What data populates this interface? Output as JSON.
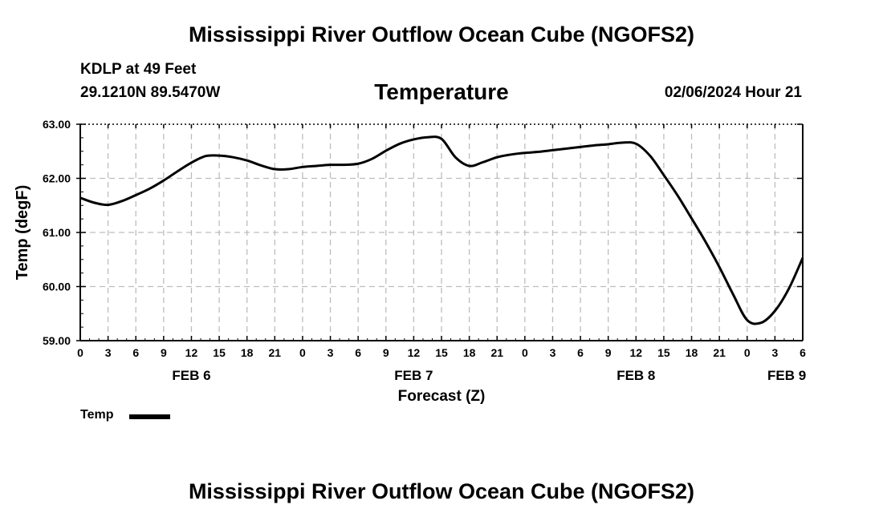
{
  "header": {
    "title": "Mississippi River Outflow Ocean Cube (NGOFS2)",
    "station": "KDLP at 49 Feet",
    "coordinates": "29.1210N  89.5470W",
    "variable": "Temperature",
    "datetime": "02/06/2024 Hour 21"
  },
  "footer": {
    "title": "Mississippi River Outflow Ocean Cube (NGOFS2)"
  },
  "legend": {
    "label": "Temp"
  },
  "chart_data": {
    "type": "line",
    "title": "Temperature",
    "xlabel": "Forecast (Z)",
    "ylabel": "Temp (degF)",
    "xlim": [
      0,
      78
    ],
    "ylim": [
      59.0,
      63.0
    ],
    "grid": true,
    "legend_position": "bottom-left",
    "x_ticks": [
      0,
      3,
      6,
      9,
      12,
      15,
      18,
      21,
      24,
      27,
      30,
      33,
      36,
      39,
      42,
      45,
      48,
      51,
      54,
      57,
      60,
      63,
      66,
      69,
      72,
      75,
      78
    ],
    "x_tick_labels": [
      "0",
      "3",
      "6",
      "9",
      "12",
      "15",
      "18",
      "21",
      "0",
      "3",
      "6",
      "9",
      "12",
      "15",
      "18",
      "21",
      "0",
      "3",
      "6",
      "9",
      "12",
      "15",
      "18",
      "21",
      "0",
      "3",
      "6"
    ],
    "y_ticks": [
      59.0,
      60.0,
      61.0,
      62.0,
      63.0
    ],
    "y_tick_labels": [
      "59.00",
      "60.00",
      "61.00",
      "62.00",
      "63.00"
    ],
    "day_labels": [
      {
        "label": "FEB 6",
        "x": 12
      },
      {
        "label": "FEB 7",
        "x": 36
      },
      {
        "label": "FEB 8",
        "x": 60
      },
      {
        "label": "FEB 9",
        "x": 75.5
      }
    ],
    "series": [
      {
        "name": "Temp",
        "color": "#000000",
        "x": [
          0,
          1.5,
          3,
          4.5,
          6,
          7.5,
          9,
          10.5,
          12,
          13.5,
          15,
          16.5,
          18,
          19.5,
          21,
          22.5,
          24,
          25.5,
          27,
          28.5,
          30,
          31.5,
          33,
          34.5,
          36,
          37.5,
          39,
          40.5,
          42,
          43.5,
          45,
          46.5,
          48,
          49.5,
          51,
          52.5,
          54,
          55.5,
          57,
          58.5,
          60,
          61.5,
          63,
          64.5,
          66,
          67.5,
          69,
          70.5,
          72,
          73.5,
          75,
          76.5,
          78
        ],
        "values": [
          61.64,
          61.55,
          61.51,
          61.58,
          61.69,
          61.81,
          61.96,
          62.13,
          62.29,
          62.41,
          62.42,
          62.39,
          62.33,
          62.24,
          62.17,
          62.17,
          62.21,
          62.23,
          62.25,
          62.25,
          62.27,
          62.36,
          62.51,
          62.64,
          62.72,
          62.76,
          62.73,
          62.39,
          62.23,
          62.3,
          62.39,
          62.44,
          62.47,
          62.49,
          62.52,
          62.55,
          62.58,
          62.61,
          62.63,
          62.66,
          62.64,
          62.42,
          62.06,
          61.68,
          61.26,
          60.83,
          60.36,
          59.85,
          59.38,
          59.33,
          59.55,
          59.96,
          60.53
        ]
      }
    ]
  }
}
